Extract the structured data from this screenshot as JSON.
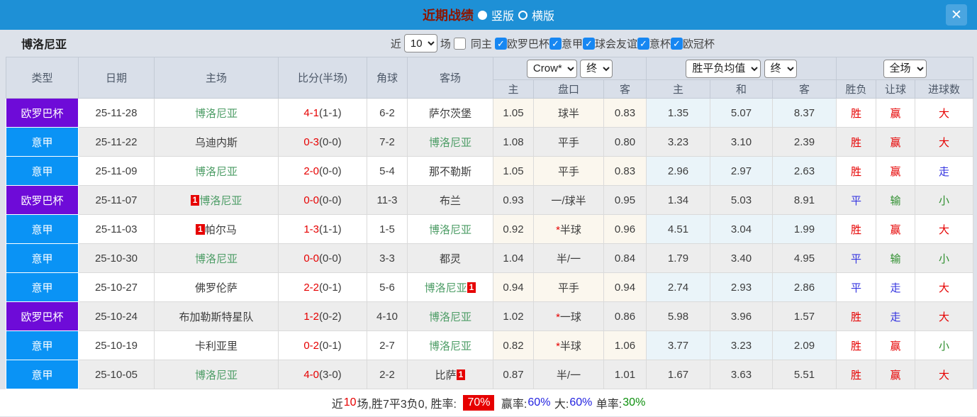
{
  "titlebar": {
    "title": "近期战绩",
    "vertical_label": "竖版",
    "horizontal_label": "横版",
    "close_icon": "✕"
  },
  "filterbar": {
    "team": "博洛尼亚",
    "near_label": "近",
    "games_value": "10",
    "games_label": "场",
    "same_home_label": "同主",
    "check_glyph": "✓",
    "league_filters": [
      "欧罗巴杯",
      "意甲",
      "球会友谊",
      "意杯",
      "欧冠杯"
    ]
  },
  "table": {
    "main_headers": [
      "类型",
      "日期",
      "主场",
      "比分(半场)",
      "角球",
      "客场"
    ],
    "selects": {
      "company": "Crow*",
      "time1": "终",
      "avg": "胜平负均值",
      "time2": "终",
      "scope": "全场"
    },
    "sub_headers": [
      "主",
      "盘口",
      "客",
      "主",
      "和",
      "客",
      "胜负",
      "让球",
      "进球数"
    ],
    "rows": [
      {
        "league": "欧罗巴杯",
        "date": "25-11-28",
        "home": {
          "name": "博洛尼亚",
          "green": true,
          "badge_pos": ""
        },
        "away": {
          "name": "萨尔茨堡",
          "green": false,
          "badge_pos": ""
        },
        "score_full": "4-1",
        "score_half": "(1-1)",
        "corner": "6-2",
        "odds_home": "1.05",
        "handicap": "球半",
        "handicap_star": false,
        "odds_away": "0.83",
        "avg": [
          "1.35",
          "5.07",
          "8.37"
        ],
        "wdl": {
          "text": "胜",
          "color": "red"
        },
        "let": {
          "text": "赢",
          "color": "red"
        },
        "goals": {
          "text": "大",
          "color": "red"
        }
      },
      {
        "league": "意甲",
        "date": "25-11-22",
        "home": {
          "name": "乌迪内斯",
          "green": false,
          "badge_pos": ""
        },
        "away": {
          "name": "博洛尼亚",
          "green": true,
          "badge_pos": ""
        },
        "score_full": "0-3",
        "score_half": "(0-0)",
        "corner": "7-2",
        "odds_home": "1.08",
        "handicap": "平手",
        "handicap_star": false,
        "odds_away": "0.80",
        "avg": [
          "3.23",
          "3.10",
          "2.39"
        ],
        "wdl": {
          "text": "胜",
          "color": "red"
        },
        "let": {
          "text": "赢",
          "color": "red"
        },
        "goals": {
          "text": "大",
          "color": "red"
        }
      },
      {
        "league": "意甲",
        "date": "25-11-09",
        "home": {
          "name": "博洛尼亚",
          "green": true,
          "badge_pos": ""
        },
        "away": {
          "name": "那不勒斯",
          "green": false,
          "badge_pos": ""
        },
        "score_full": "2-0",
        "score_half": "(0-0)",
        "corner": "5-4",
        "odds_home": "1.05",
        "handicap": "平手",
        "handicap_star": false,
        "odds_away": "0.83",
        "avg": [
          "2.96",
          "2.97",
          "2.63"
        ],
        "wdl": {
          "text": "胜",
          "color": "red"
        },
        "let": {
          "text": "赢",
          "color": "red"
        },
        "goals": {
          "text": "走",
          "color": "blue"
        }
      },
      {
        "league": "欧罗巴杯",
        "date": "25-11-07",
        "home": {
          "name": "博洛尼亚",
          "green": true,
          "badge_pos": "before",
          "badge_text": "1"
        },
        "away": {
          "name": "布兰",
          "green": false,
          "badge_pos": ""
        },
        "score_full": "0-0",
        "score_half": "(0-0)",
        "corner": "11-3",
        "odds_home": "0.93",
        "handicap": "一/球半",
        "handicap_star": false,
        "odds_away": "0.95",
        "avg": [
          "1.34",
          "5.03",
          "8.91"
        ],
        "wdl": {
          "text": "平",
          "color": "blue"
        },
        "let": {
          "text": "输",
          "color": "green"
        },
        "goals": {
          "text": "小",
          "color": "green"
        }
      },
      {
        "league": "意甲",
        "date": "25-11-03",
        "home": {
          "name": "帕尔马",
          "green": false,
          "badge_pos": "before",
          "badge_text": "1"
        },
        "away": {
          "name": "博洛尼亚",
          "green": true,
          "badge_pos": ""
        },
        "score_full": "1-3",
        "score_half": "(1-1)",
        "corner": "1-5",
        "odds_home": "0.92",
        "handicap": "半球",
        "handicap_star": true,
        "odds_away": "0.96",
        "avg": [
          "4.51",
          "3.04",
          "1.99"
        ],
        "wdl": {
          "text": "胜",
          "color": "red"
        },
        "let": {
          "text": "赢",
          "color": "red"
        },
        "goals": {
          "text": "大",
          "color": "red"
        }
      },
      {
        "league": "意甲",
        "date": "25-10-30",
        "home": {
          "name": "博洛尼亚",
          "green": true,
          "badge_pos": ""
        },
        "away": {
          "name": "都灵",
          "green": false,
          "badge_pos": ""
        },
        "score_full": "0-0",
        "score_half": "(0-0)",
        "corner": "3-3",
        "odds_home": "1.04",
        "handicap": "半/一",
        "handicap_star": false,
        "odds_away": "0.84",
        "avg": [
          "1.79",
          "3.40",
          "4.95"
        ],
        "wdl": {
          "text": "平",
          "color": "blue"
        },
        "let": {
          "text": "输",
          "color": "green"
        },
        "goals": {
          "text": "小",
          "color": "green"
        }
      },
      {
        "league": "意甲",
        "date": "25-10-27",
        "home": {
          "name": "佛罗伦萨",
          "green": false,
          "badge_pos": ""
        },
        "away": {
          "name": "博洛尼亚",
          "green": true,
          "badge_pos": "after",
          "badge_text": "1"
        },
        "score_full": "2-2",
        "score_half": "(0-1)",
        "corner": "5-6",
        "odds_home": "0.94",
        "handicap": "平手",
        "handicap_star": false,
        "odds_away": "0.94",
        "avg": [
          "2.74",
          "2.93",
          "2.86"
        ],
        "wdl": {
          "text": "平",
          "color": "blue"
        },
        "let": {
          "text": "走",
          "color": "blue"
        },
        "goals": {
          "text": "大",
          "color": "red"
        }
      },
      {
        "league": "欧罗巴杯",
        "date": "25-10-24",
        "home": {
          "name": "布加勒斯特星队",
          "green": false,
          "badge_pos": ""
        },
        "away": {
          "name": "博洛尼亚",
          "green": true,
          "badge_pos": ""
        },
        "score_full": "1-2",
        "score_half": "(0-2)",
        "corner": "4-10",
        "odds_home": "1.02",
        "handicap": "一球",
        "handicap_star": true,
        "odds_away": "0.86",
        "avg": [
          "5.98",
          "3.96",
          "1.57"
        ],
        "wdl": {
          "text": "胜",
          "color": "red"
        },
        "let": {
          "text": "走",
          "color": "blue"
        },
        "goals": {
          "text": "大",
          "color": "red"
        }
      },
      {
        "league": "意甲",
        "date": "25-10-19",
        "home": {
          "name": "卡利亚里",
          "green": false,
          "badge_pos": ""
        },
        "away": {
          "name": "博洛尼亚",
          "green": true,
          "badge_pos": ""
        },
        "score_full": "0-2",
        "score_half": "(0-1)",
        "corner": "2-7",
        "odds_home": "0.82",
        "handicap": "半球",
        "handicap_star": true,
        "odds_away": "1.06",
        "avg": [
          "3.77",
          "3.23",
          "2.09"
        ],
        "wdl": {
          "text": "胜",
          "color": "red"
        },
        "let": {
          "text": "赢",
          "color": "red"
        },
        "goals": {
          "text": "小",
          "color": "green"
        }
      },
      {
        "league": "意甲",
        "date": "25-10-05",
        "home": {
          "name": "博洛尼亚",
          "green": true,
          "badge_pos": ""
        },
        "away": {
          "name": "比萨",
          "green": false,
          "badge_pos": "after",
          "badge_text": "1"
        },
        "score_full": "4-0",
        "score_half": "(3-0)",
        "corner": "2-2",
        "odds_home": "0.87",
        "handicap": "半/一",
        "handicap_star": false,
        "odds_away": "1.01",
        "avg": [
          "1.67",
          "3.63",
          "5.51"
        ],
        "wdl": {
          "text": "胜",
          "color": "red"
        },
        "let": {
          "text": "赢",
          "color": "red"
        },
        "goals": {
          "text": "大",
          "color": "red"
        }
      }
    ]
  },
  "footer": {
    "near_label": "近",
    "games": "10",
    "summary": "场,胜7平3负0, 胜率: ",
    "win_rate": "70%",
    "win_odds_label": " 赢率:",
    "win_odds_rate": "60%",
    "big_label": " 大:",
    "big_rate": "60%",
    "single_label": " 单率:",
    "single_rate": "30%"
  },
  "colors": {
    "leagues": {
      "欧罗巴杯": "#6e0bd8",
      "意甲": "#0a93f5"
    },
    "results": {
      "red": "#e60000",
      "blue": "#3535e0",
      "green": "#2f8f2f"
    },
    "titlebar_blue": "#1e90d6",
    "team_green": "#4d9d66",
    "score_red": "#e60000"
  }
}
